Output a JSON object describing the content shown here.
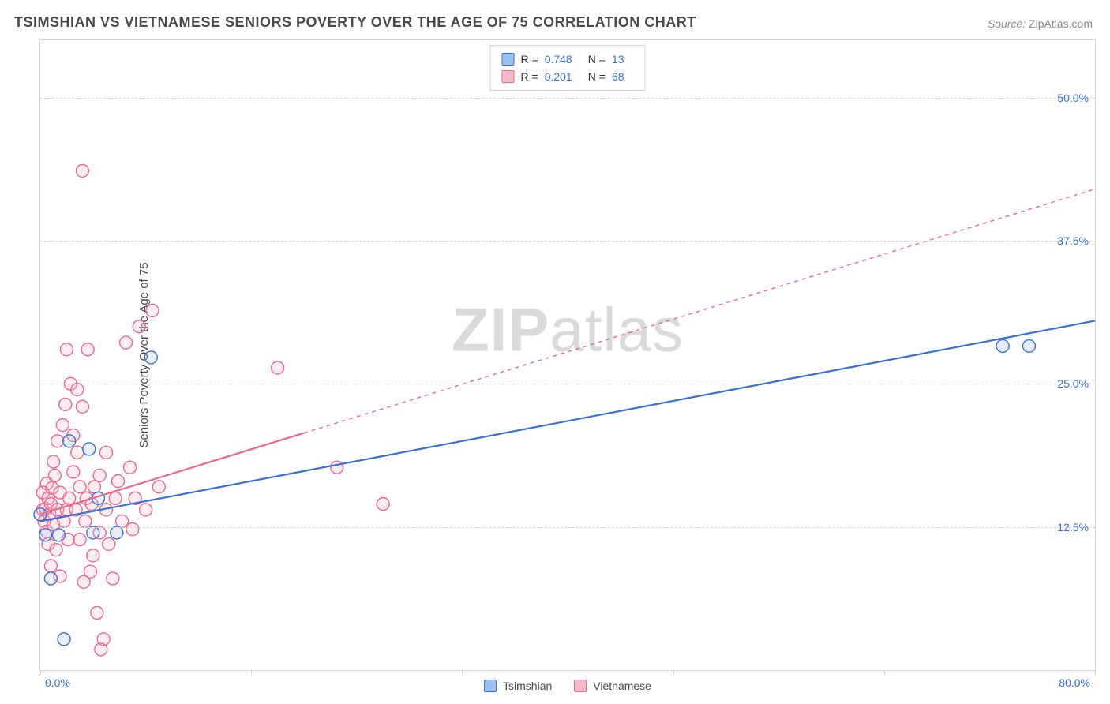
{
  "title": "TSIMSHIAN VS VIETNAMESE SENIORS POVERTY OVER THE AGE OF 75 CORRELATION CHART",
  "source_label": "Source:",
  "source_value": "ZipAtlas.com",
  "ylabel": "Seniors Poverty Over the Age of 75",
  "watermark_bold": "ZIP",
  "watermark_rest": "atlas",
  "chart": {
    "type": "scatter-correlation",
    "background_color": "#ffffff",
    "grid_color": "#d5d5d5",
    "axis_label_color": "#3a6fd8",
    "text_color": "#4a4a4a",
    "title_fontsize": 18,
    "label_fontsize": 15,
    "tick_fontsize": 14,
    "xlim": [
      0,
      80
    ],
    "ylim": [
      0,
      55
    ],
    "x_tick_positions": [
      0,
      16,
      32,
      48,
      64,
      80
    ],
    "x_min_label": "0.0%",
    "x_max_label": "80.0%",
    "y_gridlines": [
      {
        "value": 12.5,
        "label": "12.5%"
      },
      {
        "value": 25.0,
        "label": "25.0%"
      },
      {
        "value": 37.5,
        "label": "37.5%"
      },
      {
        "value": 50.0,
        "label": "50.0%"
      }
    ],
    "marker_radius": 8,
    "marker_fill_opacity": 0.25,
    "marker_stroke_width": 1.4,
    "line_width": 2.2,
    "series": [
      {
        "name": "Tsimshian",
        "color_stroke": "#3a6fd8",
        "color_fill": "#9cc0f0",
        "R_label": "R =",
        "R": "0.748",
        "N_label": "N =",
        "N": "13",
        "trendline": {
          "x1": 0,
          "y1": 13.0,
          "x2": 80,
          "y2": 30.5,
          "solid_until_x": 80,
          "dash": "none"
        },
        "points": [
          [
            0.0,
            13.6
          ],
          [
            0.4,
            11.8
          ],
          [
            0.8,
            8.0
          ],
          [
            1.4,
            11.8
          ],
          [
            1.8,
            2.7
          ],
          [
            2.2,
            20.0
          ],
          [
            3.7,
            19.3
          ],
          [
            4.0,
            12.0
          ],
          [
            4.4,
            15.0
          ],
          [
            5.8,
            12.0
          ],
          [
            8.4,
            27.3
          ],
          [
            73.0,
            28.3
          ],
          [
            75.0,
            28.3
          ]
        ]
      },
      {
        "name": "Vietnamese",
        "color_stroke": "#e86a8a",
        "color_fill": "#f6b9c8",
        "R_label": "R =",
        "R": "0.201",
        "N_label": "N =",
        "N": "68",
        "trendline": {
          "x1": 0,
          "y1": 13.6,
          "x2": 80,
          "y2": 42.0,
          "solid_until_x": 20,
          "dash": "5,5"
        },
        "points": [
          [
            0.2,
            14.0
          ],
          [
            0.2,
            15.5
          ],
          [
            0.3,
            13.0
          ],
          [
            0.4,
            14.1
          ],
          [
            0.5,
            12.1
          ],
          [
            0.5,
            16.3
          ],
          [
            0.6,
            11.0
          ],
          [
            0.6,
            15.0
          ],
          [
            0.7,
            13.6
          ],
          [
            0.8,
            9.1
          ],
          [
            0.8,
            14.5
          ],
          [
            0.9,
            15.9
          ],
          [
            1.0,
            12.7
          ],
          [
            1.0,
            18.2
          ],
          [
            1.1,
            17.0
          ],
          [
            1.2,
            10.5
          ],
          [
            1.3,
            14.0
          ],
          [
            1.3,
            20.0
          ],
          [
            1.5,
            8.2
          ],
          [
            1.5,
            15.5
          ],
          [
            1.7,
            21.4
          ],
          [
            1.8,
            13.0
          ],
          [
            1.9,
            23.2
          ],
          [
            2.0,
            14.0
          ],
          [
            2.0,
            28.0
          ],
          [
            2.1,
            11.4
          ],
          [
            2.2,
            15.0
          ],
          [
            2.3,
            25.0
          ],
          [
            2.5,
            17.3
          ],
          [
            2.5,
            20.5
          ],
          [
            2.7,
            14.0
          ],
          [
            2.8,
            24.5
          ],
          [
            3.0,
            11.4
          ],
          [
            3.0,
            16.0
          ],
          [
            3.2,
            23.0
          ],
          [
            3.3,
            7.7
          ],
          [
            3.4,
            13.0
          ],
          [
            3.5,
            15.0
          ],
          [
            3.6,
            28.0
          ],
          [
            3.8,
            8.6
          ],
          [
            3.9,
            14.5
          ],
          [
            4.0,
            10.0
          ],
          [
            4.1,
            16.0
          ],
          [
            4.3,
            5.0
          ],
          [
            4.5,
            12.0
          ],
          [
            4.5,
            17.0
          ],
          [
            4.8,
            2.7
          ],
          [
            5.0,
            14.0
          ],
          [
            5.0,
            19.0
          ],
          [
            5.2,
            11.0
          ],
          [
            5.5,
            8.0
          ],
          [
            5.7,
            15.0
          ],
          [
            5.9,
            16.5
          ],
          [
            6.2,
            13.0
          ],
          [
            6.5,
            28.6
          ],
          [
            6.8,
            17.7
          ],
          [
            7.0,
            12.3
          ],
          [
            7.2,
            15.0
          ],
          [
            7.5,
            30.0
          ],
          [
            8.0,
            14.0
          ],
          [
            8.5,
            31.4
          ],
          [
            9.0,
            16.0
          ],
          [
            3.2,
            43.6
          ],
          [
            4.6,
            1.8
          ],
          [
            18.0,
            26.4
          ],
          [
            22.5,
            17.7
          ],
          [
            26.0,
            14.5
          ],
          [
            2.8,
            19.0
          ]
        ]
      }
    ],
    "legend_bottom": [
      {
        "name": "Tsimshian",
        "stroke": "#3a6fd8",
        "fill": "#9cc0f0"
      },
      {
        "name": "Vietnamese",
        "stroke": "#e86a8a",
        "fill": "#f6b9c8"
      }
    ]
  }
}
